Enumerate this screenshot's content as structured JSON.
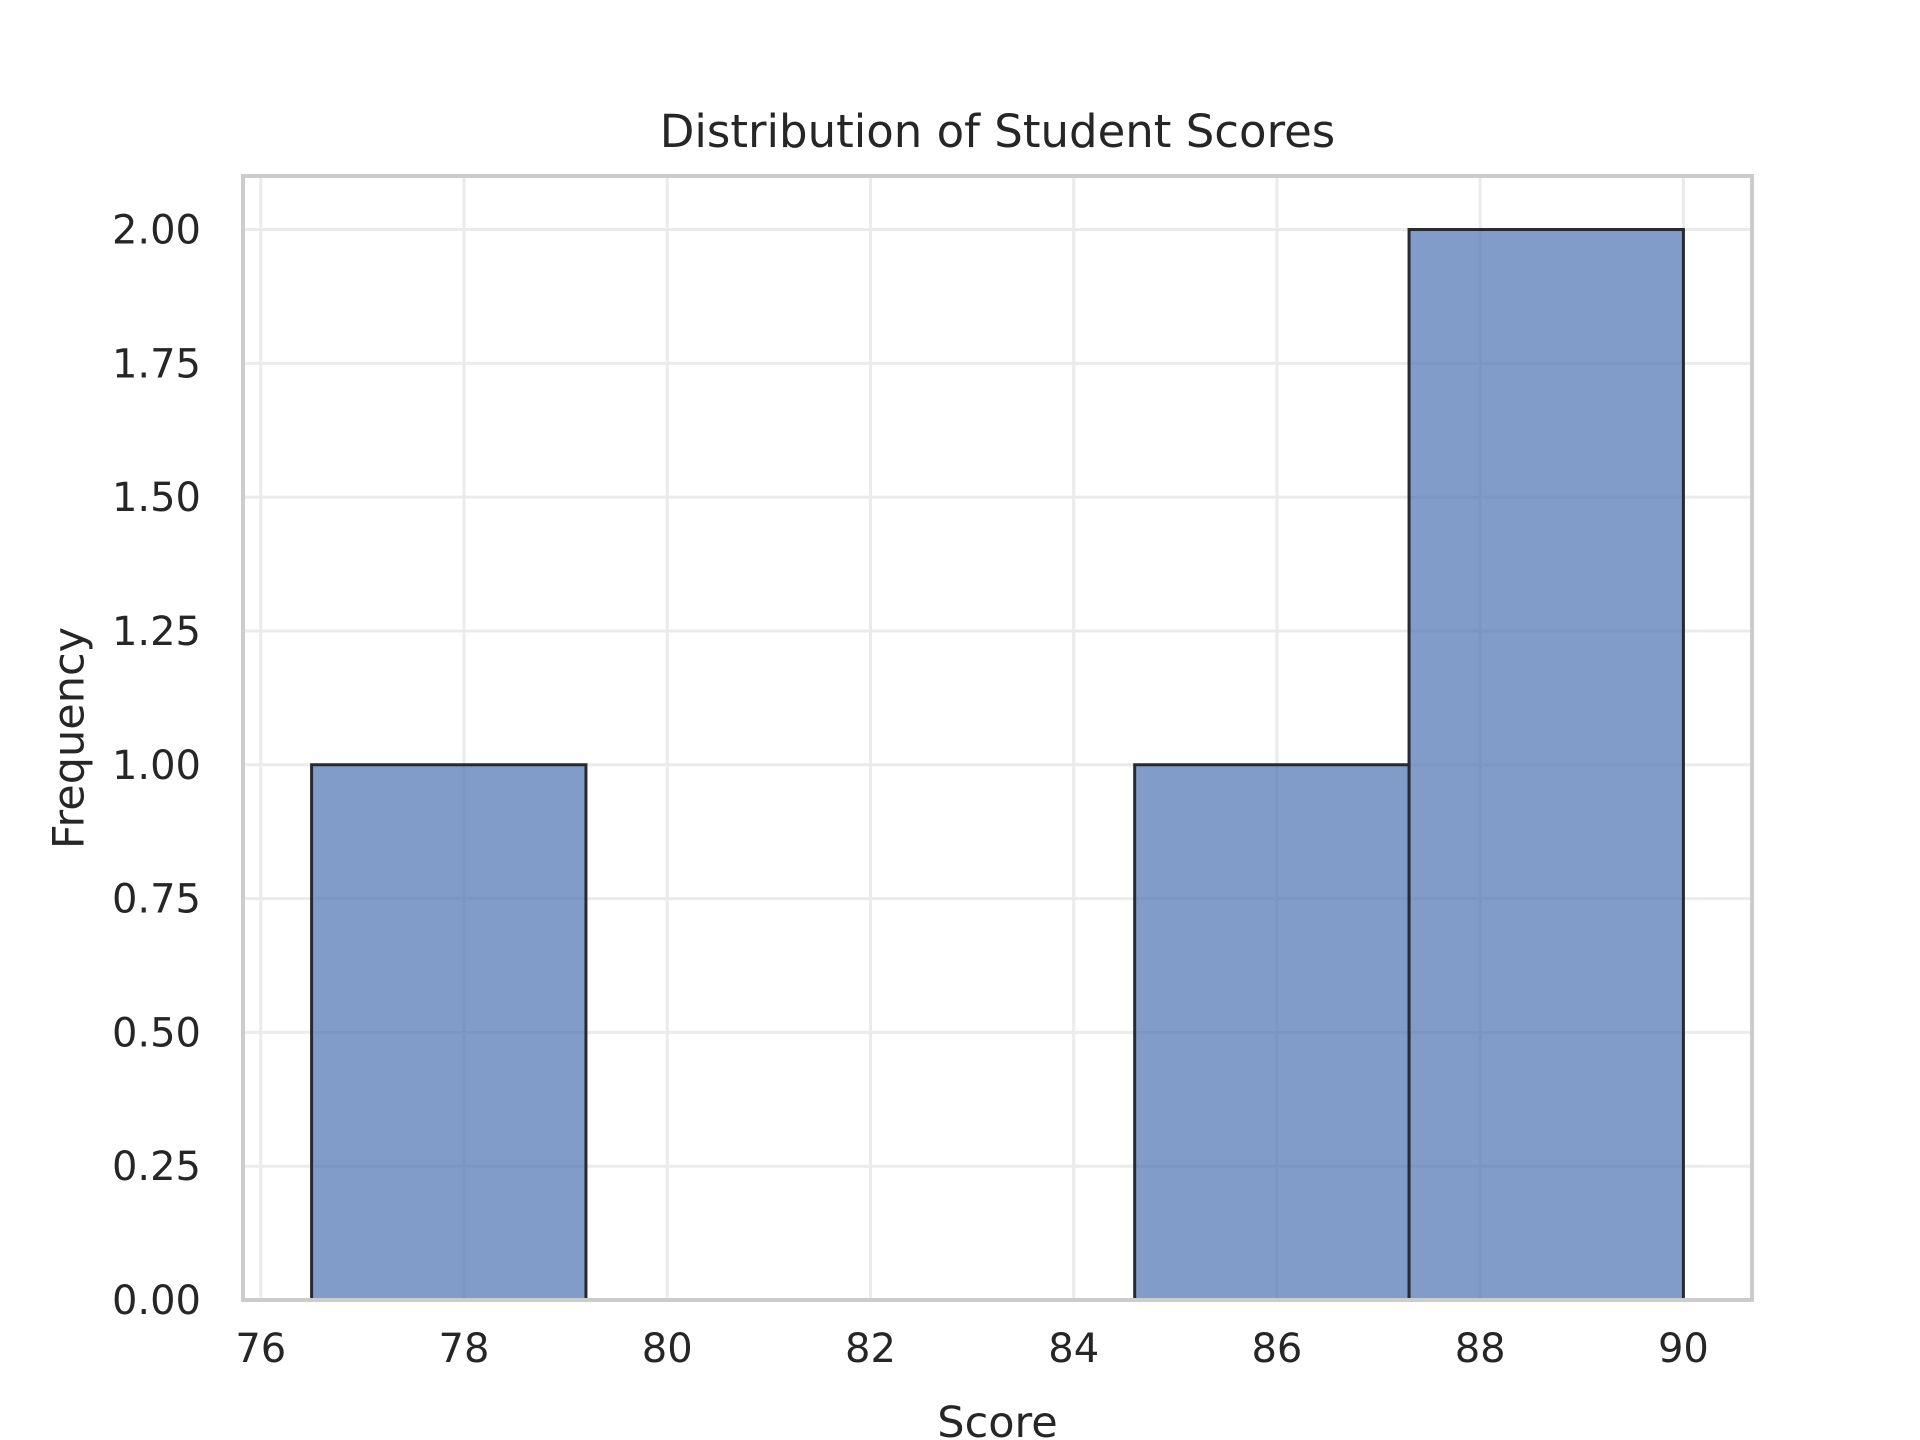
{
  "chart_data": {
    "type": "bar",
    "title": "Distribution of Student Scores",
    "xlabel": "Score",
    "ylabel": "Frequency",
    "bins": [
      {
        "start": 76.5,
        "end": 79.2,
        "count": 1
      },
      {
        "start": 79.2,
        "end": 81.9,
        "count": 0
      },
      {
        "start": 81.9,
        "end": 84.6,
        "count": 0
      },
      {
        "start": 84.6,
        "end": 87.3,
        "count": 1
      },
      {
        "start": 87.3,
        "end": 90.0,
        "count": 2
      }
    ],
    "xlim": [
      75.825,
      90.675
    ],
    "ylim": [
      0,
      2.1
    ],
    "xticks": [
      76,
      78,
      80,
      82,
      84,
      86,
      88,
      90
    ],
    "xtick_labels": [
      "76",
      "78",
      "80",
      "82",
      "84",
      "86",
      "88",
      "90"
    ],
    "yticks": [
      0,
      0.25,
      0.5,
      0.75,
      1.0,
      1.25,
      1.5,
      1.75,
      2.0
    ],
    "ytick_labels": [
      "0.00",
      "0.25",
      "0.50",
      "0.75",
      "1.00",
      "1.25",
      "1.50",
      "1.75",
      "2.00"
    ],
    "grid": true,
    "bar_color": "#4c72b0",
    "bar_alpha": 0.7,
    "edge_color": "#262a33"
  }
}
